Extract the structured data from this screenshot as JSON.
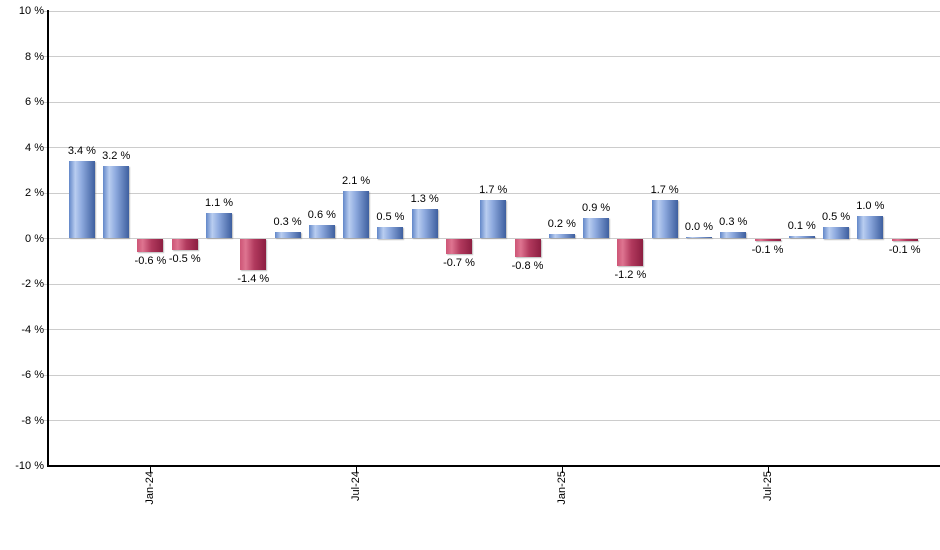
{
  "chart_data": {
    "type": "bar",
    "title": "",
    "xlabel": "",
    "ylabel": "",
    "values": [
      3.4,
      3.2,
      -0.6,
      -0.5,
      1.1,
      -1.4,
      0.3,
      0.6,
      2.1,
      0.5,
      1.3,
      -0.7,
      1.7,
      -0.8,
      0.2,
      0.9,
      -1.2,
      1.7,
      0.0,
      0.3,
      -0.1,
      0.1,
      0.5,
      1.0,
      -0.1
    ],
    "bar_labels": [
      "3.4 %",
      "3.2 %",
      "-0.6 %",
      "-0.5 %",
      "1.1 %",
      "-1.4 %",
      "0.3 %",
      "0.6 %",
      "2.1 %",
      "0.5 %",
      "1.3 %",
      "-0.7 %",
      "1.7 %",
      "-0.8 %",
      "0.2 %",
      "0.9 %",
      "-1.2 %",
      "1.7 %",
      "0.0 %",
      "0.3 %",
      "-0.1 %",
      "0.1 %",
      "0.5 %",
      "1.0 %",
      "-0.1 %"
    ],
    "y_tick_labels": [
      "10 %",
      "8 %",
      "6 %",
      "4 %",
      "2 %",
      "0 %",
      "-2 %",
      "-4 %",
      "-6 %",
      "-8 %",
      "-10 %"
    ],
    "y_tick_values": [
      10,
      8,
      6,
      4,
      2,
      0,
      -2,
      -4,
      -6,
      -8,
      -10
    ],
    "x_ticks": [
      {
        "label": "Jan-24",
        "bar_index": 2
      },
      {
        "label": "Jul-24",
        "bar_index": 8
      },
      {
        "label": "Jan-25",
        "bar_index": 14
      },
      {
        "label": "Jul-25",
        "bar_index": 20
      }
    ],
    "ylim": [
      -10,
      10
    ],
    "ytick_step": 2,
    "grid": true,
    "legend_position": "none",
    "colors": {
      "positive_gradient": [
        "#6287c8",
        "#b9cdf0",
        "#8fabdf",
        "#3e5f9f"
      ],
      "negative_gradient": [
        "#cd5576",
        "#de7490",
        "#b23a5e",
        "#8c1e41"
      ],
      "gridline": "#cccccc",
      "axis": "#000000",
      "label_text": "#000000",
      "background": "#ffffff"
    }
  }
}
